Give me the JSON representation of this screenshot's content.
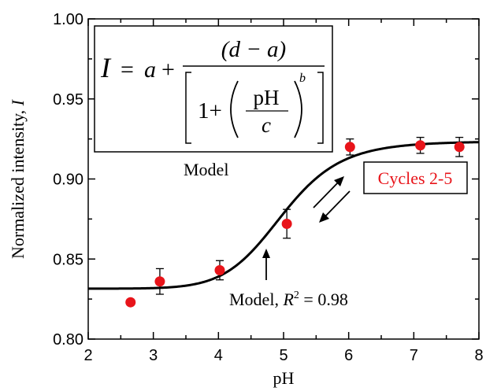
{
  "chart_data": {
    "type": "scatter",
    "xlabel": "pH",
    "ylabel_text": "Normalized intensity, ",
    "ylabel_var": "I",
    "xlim": [
      2,
      8
    ],
    "ylim": [
      0.8,
      1.0
    ],
    "x_ticks": [
      2,
      3,
      4,
      5,
      6,
      7,
      8
    ],
    "x_tick_labels": [
      "2",
      "3",
      "4",
      "5",
      "6",
      "7",
      "8"
    ],
    "y_ticks": [
      0.8,
      0.85,
      0.9,
      0.95,
      1.0
    ],
    "y_tick_labels": [
      "0.80",
      "0.85",
      "0.90",
      "0.95",
      "1.00"
    ],
    "grid": false,
    "series": [
      {
        "kind": "points",
        "color": "#e8141a",
        "points": [
          {
            "x": 2.65,
            "y": 0.823,
            "err": 0.001
          },
          {
            "x": 3.1,
            "y": 0.836,
            "err": 0.008
          },
          {
            "x": 4.02,
            "y": 0.843,
            "err": 0.006
          },
          {
            "x": 5.05,
            "y": 0.872,
            "err": 0.009
          },
          {
            "x": 6.02,
            "y": 0.92,
            "err": 0.005
          },
          {
            "x": 7.1,
            "y": 0.921,
            "err": 0.005
          },
          {
            "x": 7.7,
            "y": 0.92,
            "err": 0.006
          }
        ]
      },
      {
        "kind": "fit-curve",
        "color": "#000000",
        "params": {
          "a": 0.8315,
          "d": 0.9235,
          "c": 4.98,
          "b": 11
        }
      }
    ],
    "annotations": {
      "model_label": "Model",
      "fit_label_prefix": "Model, ",
      "fit_label_var": "R",
      "fit_label_exp": "2",
      "fit_label_value": " = 0.98",
      "cycles_label": "Cycles 2-5",
      "cycles_color": "#e8141a"
    },
    "equation": {
      "lhs": "I",
      "eq": "=",
      "a": "a",
      "plus": "+",
      "numerator": "(d − a)",
      "one_plus": "1+",
      "ph": "pH",
      "c": "c",
      "b": "b"
    }
  }
}
